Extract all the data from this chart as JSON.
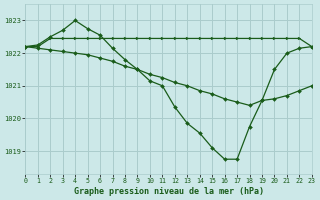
{
  "bg_color": "#cce8e8",
  "grid_color": "#aacccc",
  "line_color": "#1a5c1a",
  "title": "Graphe pression niveau de la mer (hPa)",
  "xlim": [
    0,
    23
  ],
  "ylim": [
    1018.3,
    1023.5
  ],
  "yticks": [
    1019,
    1020,
    1021,
    1022,
    1023
  ],
  "xticks": [
    0,
    1,
    2,
    3,
    4,
    5,
    6,
    7,
    8,
    9,
    10,
    11,
    12,
    13,
    14,
    15,
    16,
    17,
    18,
    19,
    20,
    21,
    22,
    23
  ],
  "series1_x": [
    0,
    1,
    2,
    3,
    4,
    5,
    6,
    7,
    8,
    9,
    10,
    11,
    12,
    13,
    14,
    15,
    16,
    17,
    18,
    19,
    20,
    21,
    22,
    23
  ],
  "series1_y": [
    1022.2,
    1022.2,
    1022.45,
    1022.45,
    1022.45,
    1022.45,
    1022.45,
    1022.45,
    1022.45,
    1022.45,
    1022.45,
    1022.45,
    1022.45,
    1022.45,
    1022.45,
    1022.45,
    1022.45,
    1022.45,
    1022.45,
    1022.45,
    1022.45,
    1022.45,
    1022.45,
    1022.2
  ],
  "series2_x": [
    0,
    1,
    2,
    3,
    4,
    5,
    6,
    7,
    8,
    9,
    10,
    11,
    12,
    13,
    14,
    15,
    16,
    17,
    18,
    19,
    20,
    21,
    22,
    23
  ],
  "series2_y": [
    1022.2,
    1022.25,
    1022.5,
    1022.7,
    1023.0,
    1022.75,
    1022.55,
    1022.15,
    1021.8,
    1021.5,
    1021.15,
    1021.0,
    1020.35,
    1019.85,
    1019.55,
    1019.1,
    1018.75,
    1018.75,
    1019.75,
    1020.55,
    1021.5,
    1022.0,
    1022.15,
    1022.2
  ],
  "series3_x": [
    0,
    1,
    2,
    3,
    4,
    5,
    6,
    7,
    8,
    9,
    10,
    11,
    12,
    13,
    14,
    15,
    16,
    17,
    18,
    19,
    20,
    21,
    22,
    23
  ],
  "series3_y": [
    1022.2,
    1022.15,
    1022.1,
    1022.05,
    1022.0,
    1021.95,
    1021.85,
    1021.75,
    1021.6,
    1021.5,
    1021.35,
    1021.25,
    1021.1,
    1021.0,
    1020.85,
    1020.75,
    1020.6,
    1020.5,
    1020.4,
    1020.55,
    1020.6,
    1020.7,
    1020.85,
    1021.0
  ]
}
